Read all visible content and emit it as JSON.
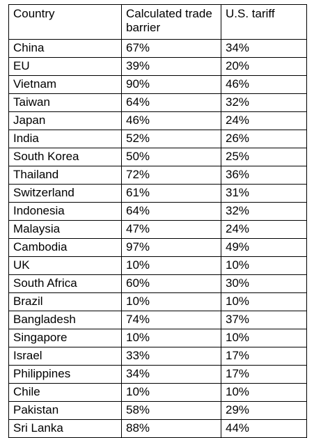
{
  "table": {
    "headers": {
      "country": "Country",
      "barrier": "Calculated trade barrier",
      "tariff": "U.S. tariff"
    },
    "rows": [
      {
        "country": "China",
        "barrier": "67%",
        "tariff": "34%"
      },
      {
        "country": "EU",
        "barrier": "39%",
        "tariff": "20%"
      },
      {
        "country": "Vietnam",
        "barrier": "90%",
        "tariff": "46%"
      },
      {
        "country": "Taiwan",
        "barrier": "64%",
        "tariff": "32%"
      },
      {
        "country": "Japan",
        "barrier": "46%",
        "tariff": "24%"
      },
      {
        "country": "India",
        "barrier": "52%",
        "tariff": "26%"
      },
      {
        "country": "South Korea",
        "barrier": "50%",
        "tariff": "25%"
      },
      {
        "country": "Thailand",
        "barrier": "72%",
        "tariff": "36%"
      },
      {
        "country": "Switzerland",
        "barrier": "61%",
        "tariff": "31%"
      },
      {
        "country": "Indonesia",
        "barrier": "64%",
        "tariff": "32%"
      },
      {
        "country": "Malaysia",
        "barrier": "47%",
        "tariff": "24%"
      },
      {
        "country": "Cambodia",
        "barrier": "97%",
        "tariff": "49%"
      },
      {
        "country": "UK",
        "barrier": "10%",
        "tariff": "10%"
      },
      {
        "country": "South Africa",
        "barrier": "60%",
        "tariff": "30%"
      },
      {
        "country": "Brazil",
        "barrier": "10%",
        "tariff": "10%"
      },
      {
        "country": "Bangladesh",
        "barrier": "74%",
        "tariff": "37%"
      },
      {
        "country": "Singapore",
        "barrier": "10%",
        "tariff": "10%"
      },
      {
        "country": "Israel",
        "barrier": "33%",
        "tariff": "17%"
      },
      {
        "country": "Philippines",
        "barrier": "34%",
        "tariff": "17%"
      },
      {
        "country": "Chile",
        "barrier": "10%",
        "tariff": "10%"
      },
      {
        "country": "Pakistan",
        "barrier": "58%",
        "tariff": "29%"
      },
      {
        "country": "Sri Lanka",
        "barrier": "88%",
        "tariff": "44%"
      }
    ]
  }
}
